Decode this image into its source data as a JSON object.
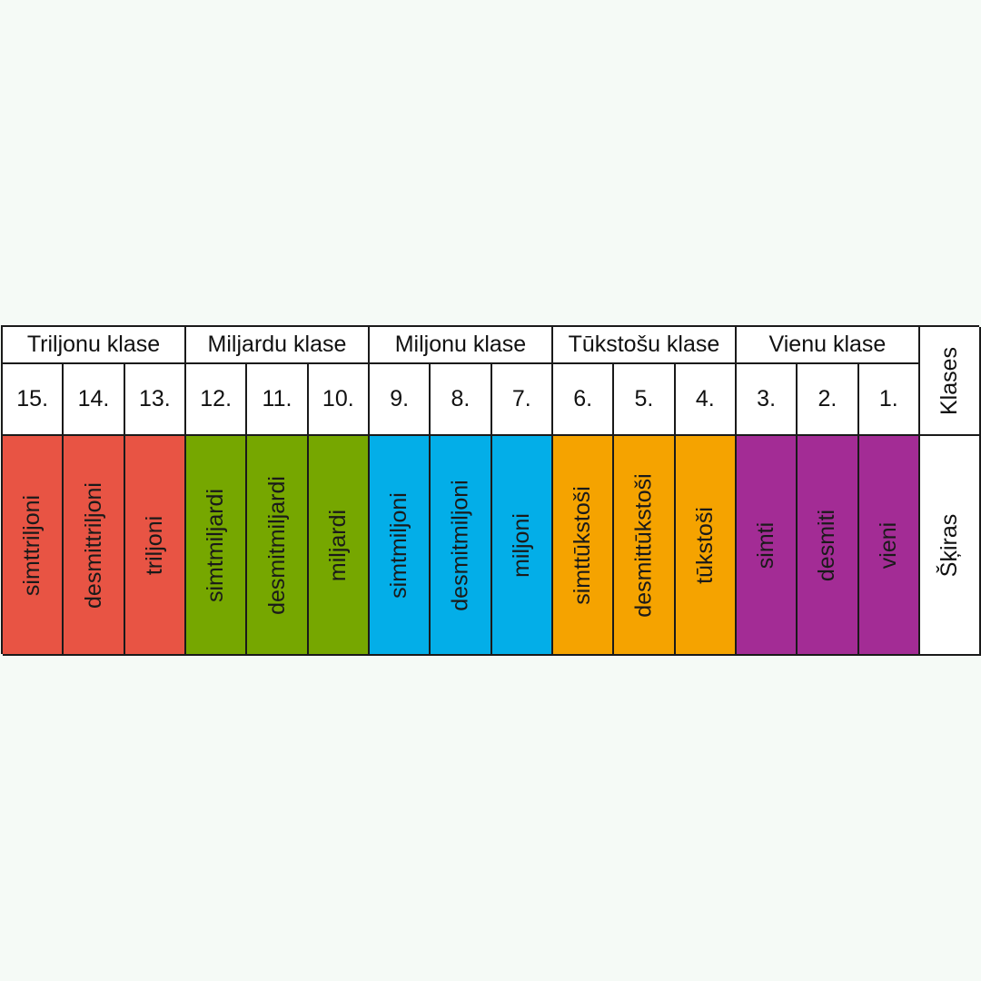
{
  "classes_label": "Klases",
  "digits_label": "Šķiras",
  "classes": [
    {
      "name": "Triljonu klase",
      "color": "#e85444"
    },
    {
      "name": "Miljardu klase",
      "color": "#76a700"
    },
    {
      "name": "Miljonu klase",
      "color": "#03aee8"
    },
    {
      "name": "Tūkstošu klase",
      "color": "#f5a300"
    },
    {
      "name": "Vienu klase",
      "color": "#a32c95"
    }
  ],
  "positions": [
    "15.",
    "14.",
    "13.",
    "12.",
    "11.",
    "10.",
    "9.",
    "8.",
    "7.",
    "6.",
    "5.",
    "4.",
    "3.",
    "2.",
    "1."
  ],
  "digit_names": [
    "simttriljoni",
    "desmittriljoni",
    "triljoni",
    "simtmiljardi",
    "desmitmiljardi",
    "miljardi",
    "simtmiljoni",
    "desmitmiljoni",
    "miljoni",
    "simttūkstoši",
    "desmittūkstoši",
    "tūkstoši",
    "simti",
    "desmiti",
    "vieni"
  ]
}
